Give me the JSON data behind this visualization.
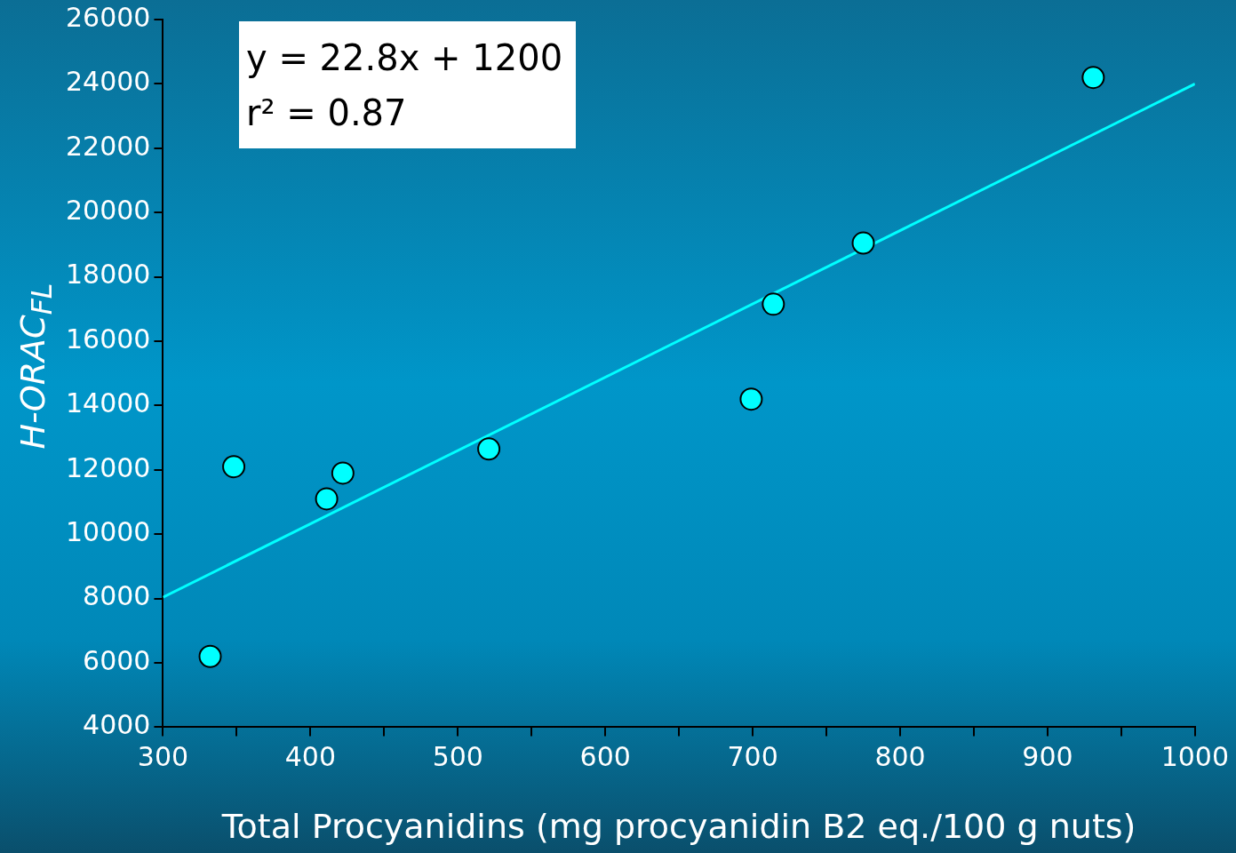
{
  "chart_data": {
    "type": "scatter",
    "xlabel": "Total Procyanidins (mg procyanidin B2 eq./100 g nuts)",
    "ylabel": "H-ORAC$_{FL}$",
    "annotations": [
      "y = 22.8x + 1200",
      "r² = 0.87"
    ],
    "xlim": [
      300,
      1000
    ],
    "xticks": [
      300,
      {
        "value": 350,
        "label": null
      },
      400,
      {
        "value": 450,
        "label": null
      },
      500,
      {
        "value": 550,
        "label": null
      },
      600,
      {
        "value": 650,
        "label": null
      },
      700,
      {
        "value": 750,
        "label": null
      },
      800,
      {
        "value": 850,
        "label": null
      },
      900,
      {
        "value": 950,
        "label": null
      },
      1000
    ],
    "ylim": [
      4000,
      26000
    ],
    "yticks": [
      4000,
      6000,
      8000,
      10000,
      12000,
      14000,
      16000,
      18000,
      20000,
      22000,
      24000,
      26000
    ],
    "grid": false,
    "legend": false,
    "series": [
      {
        "marker": "circle",
        "color": "#00ffff",
        "x": [
          332,
          348,
          411,
          422,
          521,
          699,
          714,
          775,
          931
        ],
        "values": [
          6200,
          12100,
          11100,
          11900,
          12650,
          14200,
          17150,
          19050,
          24200
        ]
      },
      {
        "type": "line",
        "marker": "none",
        "line_style": "solid",
        "color": "#00ffff",
        "x": [
          300,
          1000
        ],
        "values": [
          8040,
          24000
        ]
      }
    ]
  }
}
